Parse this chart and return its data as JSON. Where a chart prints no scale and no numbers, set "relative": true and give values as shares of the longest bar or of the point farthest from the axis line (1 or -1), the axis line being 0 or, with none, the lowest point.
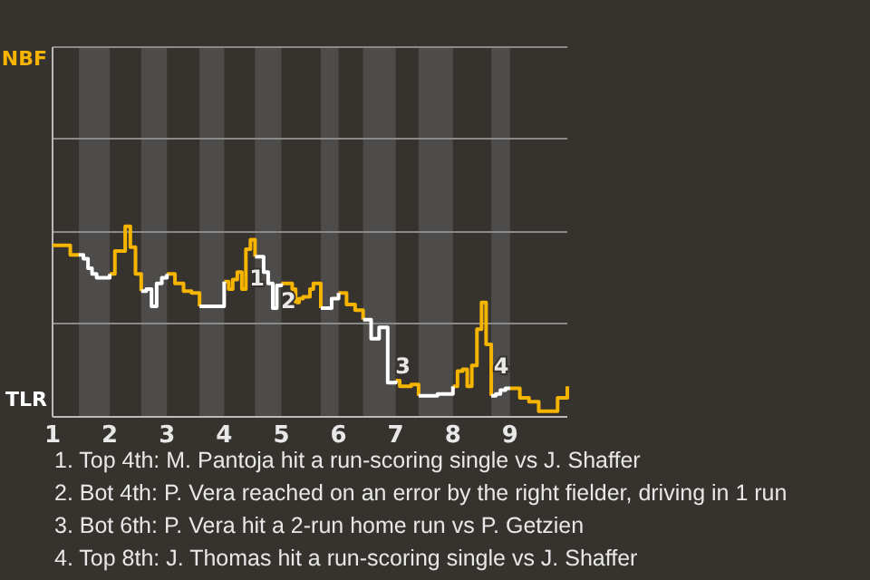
{
  "chart_data": {
    "type": "step",
    "relative": true,
    "xlim": [
      1,
      10
    ],
    "xticks": [
      1,
      2,
      3,
      4,
      5,
      6,
      7,
      8,
      9
    ],
    "ref_lines": [
      {
        "axis": "y",
        "value": 0.49,
        "color": "#8a8a8a"
      },
      {
        "axis": "y",
        "value": 0.97,
        "color": "#8a8a8a"
      },
      {
        "axis": "y",
        "value": 1.46,
        "color": "#8a8a8a"
      },
      {
        "axis": "y",
        "value": 1.94,
        "color": "#8a8a8a"
      }
    ],
    "x": [
      1,
      1.08,
      1.15,
      1.23,
      1.31,
      1.38,
      1.46,
      1.54,
      1.62,
      1.69,
      1.77,
      1.85,
      1.92,
      2,
      2.09,
      2.18,
      2.27,
      2.36,
      2.45,
      2.55,
      2.64,
      2.73,
      2.82,
      2.91,
      3,
      3.14,
      3.29,
      3.43,
      3.57,
      3.71,
      3.86,
      4,
      4.08,
      4.15,
      4.23,
      4.31,
      4.38,
      4.46,
      4.54,
      4.62,
      4.69,
      4.77,
      4.85,
      4.92,
      5,
      5.06,
      5.13,
      5.19,
      5.25,
      5.31,
      5.38,
      5.44,
      5.5,
      5.56,
      5.63,
      5.69,
      5.75,
      5.81,
      5.88,
      5.94,
      6,
      6.14,
      6.29,
      6.43,
      6.57,
      6.71,
      6.86,
      7,
      7.07,
      7.13,
      7.2,
      7.27,
      7.33,
      7.4,
      7.47,
      7.53,
      7.6,
      7.67,
      7.73,
      7.8,
      7.87,
      7.93,
      8,
      8.08,
      8.17,
      8.25,
      8.33,
      8.42,
      8.5,
      8.58,
      8.67,
      8.75,
      8.83,
      8.92,
      9,
      9.17,
      9.33,
      9.5,
      9.67,
      9.83,
      10
    ],
    "series": [
      {
        "color": "#f5b400",
        "values": [
          0.9,
          0.9,
          0.9,
          0.9,
          0.85,
          0.85,
          0.85,
          null,
          null,
          null,
          null,
          null,
          null,
          0.75,
          0.87,
          0.87,
          1,
          0.89,
          0.75,
          0.66,
          null,
          null,
          null,
          null,
          0.75,
          0.7,
          0.66,
          0.65,
          0.58,
          null,
          null,
          0.71,
          0.67,
          0.72,
          0.76,
          0.67,
          0.88,
          0.93,
          0.84,
          null,
          null,
          null,
          null,
          null,
          0.7,
          0.7,
          0.7,
          0.67,
          0.6,
          0.62,
          0.63,
          0.63,
          0.67,
          0.7,
          0.7,
          0.57,
          null,
          null,
          null,
          null,
          0.65,
          0.59,
          0.56,
          0.51,
          null,
          null,
          null,
          0.19,
          0.16,
          0.16,
          0.16,
          0.17,
          0.17,
          0.11,
          null,
          null,
          null,
          null,
          null,
          null,
          null,
          null,
          0.16,
          0.24,
          0.25,
          0.16,
          0.27,
          0.46,
          0.6,
          0.38,
          0.11,
          null,
          null,
          null,
          0.15,
          0.1,
          0.08,
          0.03,
          0.03,
          0.1,
          0.16
        ]
      },
      {
        "color": "#ffffff",
        "values": [
          null,
          null,
          null,
          null,
          null,
          null,
          0.85,
          0.83,
          0.78,
          0.75,
          0.73,
          0.73,
          0.73,
          0.75,
          null,
          null,
          null,
          null,
          null,
          0.66,
          0.67,
          0.58,
          0.7,
          0.73,
          0.75,
          null,
          null,
          null,
          0.58,
          0.58,
          0.58,
          0.71,
          null,
          null,
          null,
          null,
          null,
          null,
          0.84,
          0.84,
          0.76,
          0.7,
          0.57,
          0.69,
          0.7,
          null,
          null,
          null,
          null,
          null,
          null,
          null,
          null,
          null,
          null,
          0.57,
          0.57,
          0.57,
          0.62,
          0.62,
          0.65,
          null,
          null,
          0.51,
          0.41,
          0.47,
          0.18,
          0.19,
          null,
          null,
          null,
          null,
          null,
          0.11,
          0.11,
          0.11,
          0.11,
          0.11,
          0.12,
          0.12,
          0.12,
          0.12,
          0.16,
          null,
          null,
          null,
          null,
          null,
          null,
          null,
          0.11,
          0.12,
          0.14,
          0.15,
          0.15,
          null,
          null,
          null,
          null,
          null,
          null
        ]
      }
    ],
    "bands": [
      {
        "axis": "x",
        "from": 1.46,
        "to": 2,
        "color": "#4e4c4a"
      },
      {
        "axis": "x",
        "from": 2.55,
        "to": 3,
        "color": "#4e4c4a"
      },
      {
        "axis": "x",
        "from": 3.57,
        "to": 4,
        "color": "#4e4c4a"
      },
      {
        "axis": "x",
        "from": 4.54,
        "to": 5,
        "color": "#4e4c4a"
      },
      {
        "axis": "x",
        "from": 5.69,
        "to": 6,
        "color": "#4e4c4a"
      },
      {
        "axis": "x",
        "from": 6.43,
        "to": 7,
        "color": "#4e4c4a"
      },
      {
        "axis": "x",
        "from": 7.4,
        "to": 8,
        "color": "#4e4c4a"
      },
      {
        "axis": "x",
        "from": 8.67,
        "to": 9,
        "color": "#4e4c4a"
      }
    ],
    "annotations": [
      {
        "text": "1",
        "x": 4.48,
        "y": 0.72
      },
      {
        "text": "2",
        "x": 5.03,
        "y": 0.6
      },
      {
        "text": "3",
        "x": 7.03,
        "y": 0.26
      },
      {
        "text": "4",
        "x": 8.75,
        "y": 0.26
      },
      "NBF",
      "TLR",
      "1. Top 4th: M. Pantoja hit a run-scoring single vs J. Shaffer",
      "2. Bot 4th: P. Vera reached on an error by the right fielder, driving in 1 run",
      "3. Bot 6th: P. Vera hit a 2-run home run vs P. Getzien",
      "4. Top 8th: J. Thomas hit a run-scoring single vs J. Shaffer"
    ]
  }
}
